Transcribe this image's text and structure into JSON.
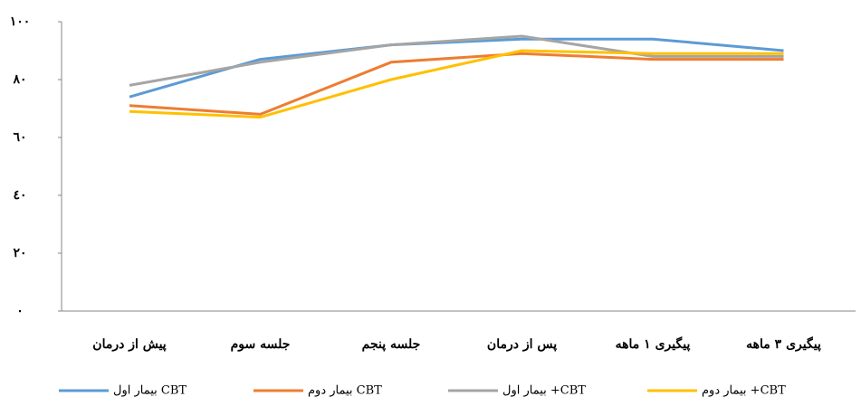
{
  "chart_data": {
    "type": "line",
    "categories": [
      "پیش از درمان",
      "جلسه سوم",
      "جلسه پنجم",
      "پس از درمان",
      "پیگیری ۱ ماهه",
      "پیگیری ۳ ماهه"
    ],
    "series": [
      {
        "name": "بیمار اول CBT",
        "color": "#5b9bd5",
        "values": [
          74,
          87,
          92,
          94,
          94,
          90
        ]
      },
      {
        "name": "بیمار دوم CBT",
        "color": "#ed7d31",
        "values": [
          71,
          68,
          86,
          89,
          87,
          87
        ]
      },
      {
        "name": "بیمار اول +CBT",
        "color": "#a5a5a5",
        "values": [
          78,
          86,
          92,
          95,
          88,
          88
        ]
      },
      {
        "name": "بیمار دوم +CBT",
        "color": "#ffc000",
        "values": [
          69,
          67,
          80,
          90,
          89,
          89
        ]
      }
    ],
    "ylim": [
      0,
      100
    ],
    "yticks": [
      {
        "value": 0,
        "label": "٠"
      },
      {
        "value": 20,
        "label": "٢٠"
      },
      {
        "value": 40,
        "label": "٤٠"
      },
      {
        "value": 60,
        "label": "٦٠"
      },
      {
        "value": 80,
        "label": "٨٠"
      },
      {
        "value": 100,
        "label": "١٠٠"
      }
    ],
    "grid": false,
    "legend": "bottom"
  }
}
